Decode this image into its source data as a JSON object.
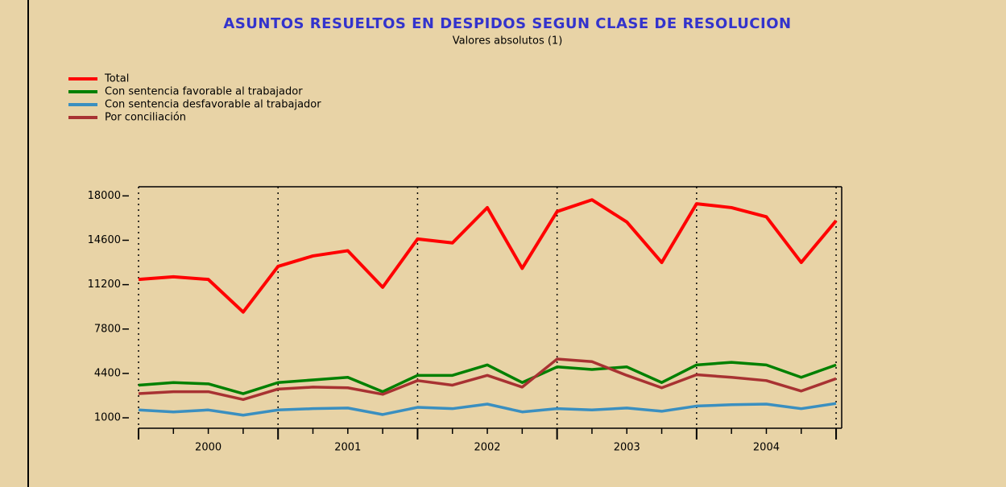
{
  "chart_data": {
    "type": "line",
    "title": "ASUNTOS RESUELTOS EN DESPIDOS SEGUN CLASE DE RESOLUCION",
    "subtitle": "Valores absolutos (1)",
    "x": [
      2000,
      2000.25,
      2000.5,
      2000.75,
      2001,
      2001.25,
      2001.5,
      2001.75,
      2002,
      2002.25,
      2002.5,
      2002.75,
      2003,
      2003.25,
      2003.5,
      2003.75,
      2004,
      2004.25,
      2004.5,
      2004.75,
      2005
    ],
    "xlim": [
      2000,
      2005.04
    ],
    "xticks": [
      {
        "value": 2000.5,
        "label": "2000"
      },
      {
        "value": 2001.5,
        "label": "2001"
      },
      {
        "value": 2002.5,
        "label": "2002"
      },
      {
        "value": 2003.5,
        "label": "2003"
      },
      {
        "value": 2004.5,
        "label": "2004"
      }
    ],
    "vlines": [
      2000,
      2001,
      2002,
      2003,
      2004,
      2005
    ],
    "ylim": [
      200,
      18700
    ],
    "yticks": [
      1000,
      4400,
      7800,
      11200,
      14600,
      18000
    ],
    "legend": "top-left",
    "series": [
      {
        "name": "Total",
        "color": "#ff0000",
        "width": 4,
        "values": [
          11600,
          11800,
          11600,
          9100,
          12600,
          13400,
          13800,
          11000,
          14700,
          14400,
          17100,
          12450,
          16800,
          17700,
          16000,
          12900,
          17400,
          17100,
          16400,
          12900,
          16100
        ]
      },
      {
        "name": "Con sentencia favorable al trabajador",
        "color": "#008000",
        "width": 3.5,
        "values": [
          3500,
          3700,
          3600,
          2850,
          3700,
          3900,
          4100,
          3000,
          4250,
          4250,
          5050,
          3700,
          4900,
          4700,
          4900,
          3700,
          5050,
          5250,
          5050,
          4100,
          5050
        ]
      },
      {
        "name": "Con sentencia desfavorable al trabajador",
        "color": "#3a8fc0",
        "width": 3.5,
        "values": [
          1600,
          1450,
          1600,
          1200,
          1600,
          1700,
          1750,
          1250,
          1800,
          1700,
          2050,
          1450,
          1700,
          1600,
          1750,
          1500,
          1900,
          2000,
          2050,
          1700,
          2100
        ]
      },
      {
        "name": "Por conciliación",
        "color": "#a83232",
        "width": 3.5,
        "values": [
          2850,
          3000,
          3000,
          2400,
          3200,
          3350,
          3300,
          2800,
          3850,
          3500,
          4250,
          3350,
          5500,
          5300,
          4250,
          3300,
          4300,
          4100,
          3850,
          3050,
          4000
        ]
      }
    ]
  }
}
